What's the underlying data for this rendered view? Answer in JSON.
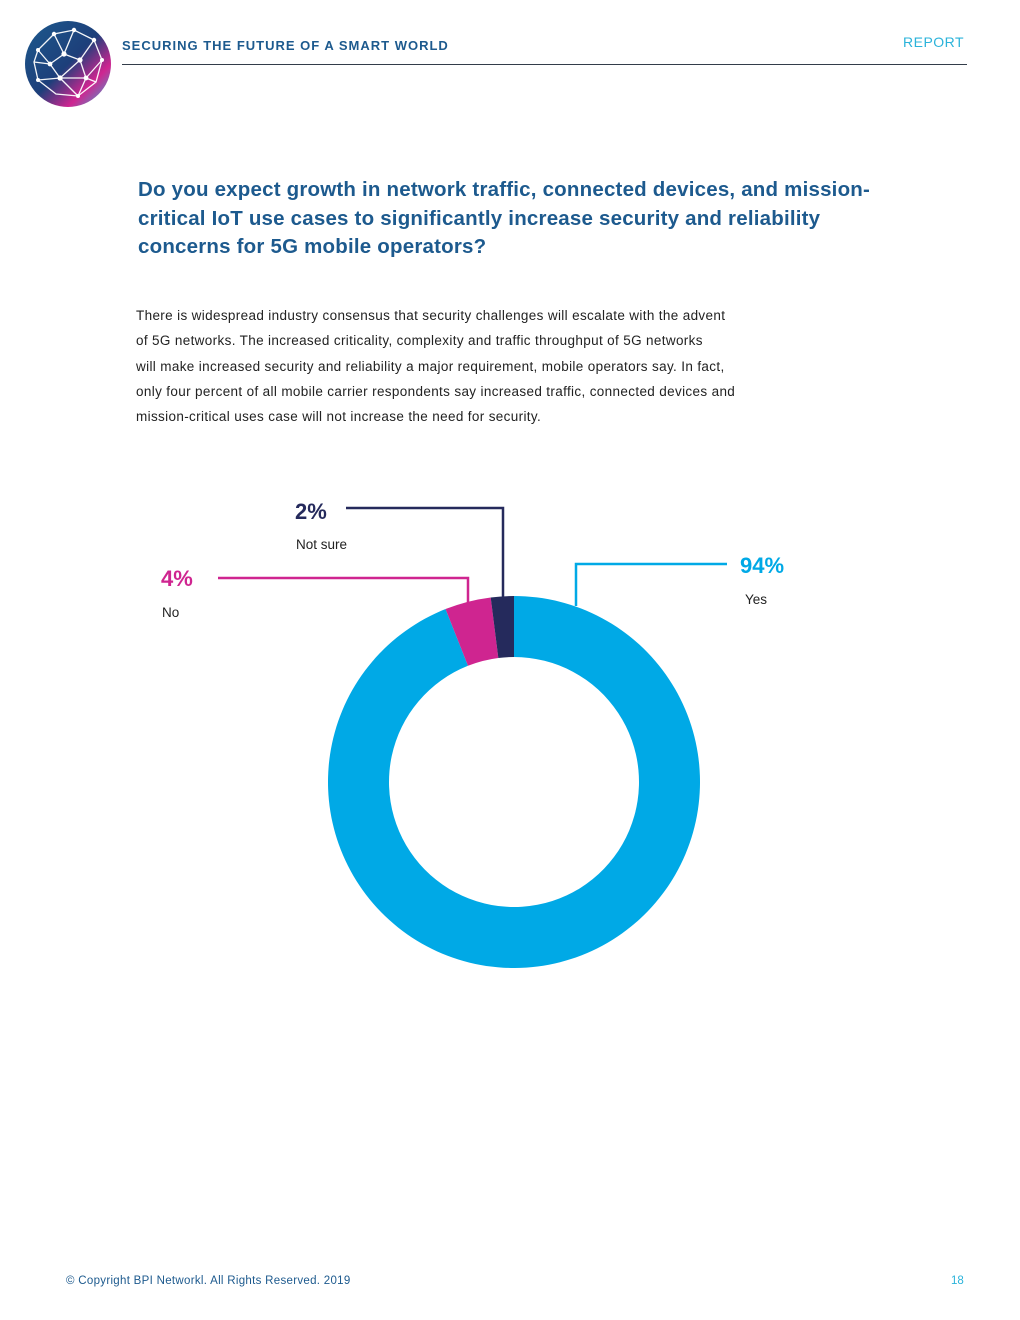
{
  "header": {
    "title": "SECURING THE FUTURE OF A SMART WORLD",
    "section": "REPORT"
  },
  "question": "Do you expect growth in network traffic, connected devices, and mission-critical IoT use cases to significantly increase security and reliability concerns for 5G mobile operators?",
  "body_lines": [
    "There is widespread industry consensus that security challenges will escalate with the advent",
    "of 5G networks. The increased criticality, complexity and traffic throughput of 5G networks",
    "will make increased security and reliability a major requirement, mobile operators say. In fact,",
    "only four percent of all mobile carrier respondents say increased traffic, connected devices and",
    "mission-critical uses case will not increase the need for security."
  ],
  "chart_data": {
    "type": "pie",
    "style": "donut",
    "slices": [
      {
        "label": "Yes",
        "value": 94,
        "value_label": "94%",
        "color": "#00a9e6"
      },
      {
        "label": "No",
        "value": 4,
        "value_label": "4%",
        "color": "#cf2590"
      },
      {
        "label": "Not sure",
        "value": 2,
        "value_label": "2%",
        "color": "#252a5c"
      }
    ]
  },
  "footer": {
    "copyright": "© Copyright BPI Networkl. All Rights Reserved. 2019",
    "page_number": "18"
  },
  "colors": {
    "brand_blue": "#1d5a8e",
    "accent_cyan": "#2bb3da",
    "magenta": "#cf2590",
    "navy": "#252a5c"
  },
  "logo": {
    "icon": "network-globe-logo"
  }
}
